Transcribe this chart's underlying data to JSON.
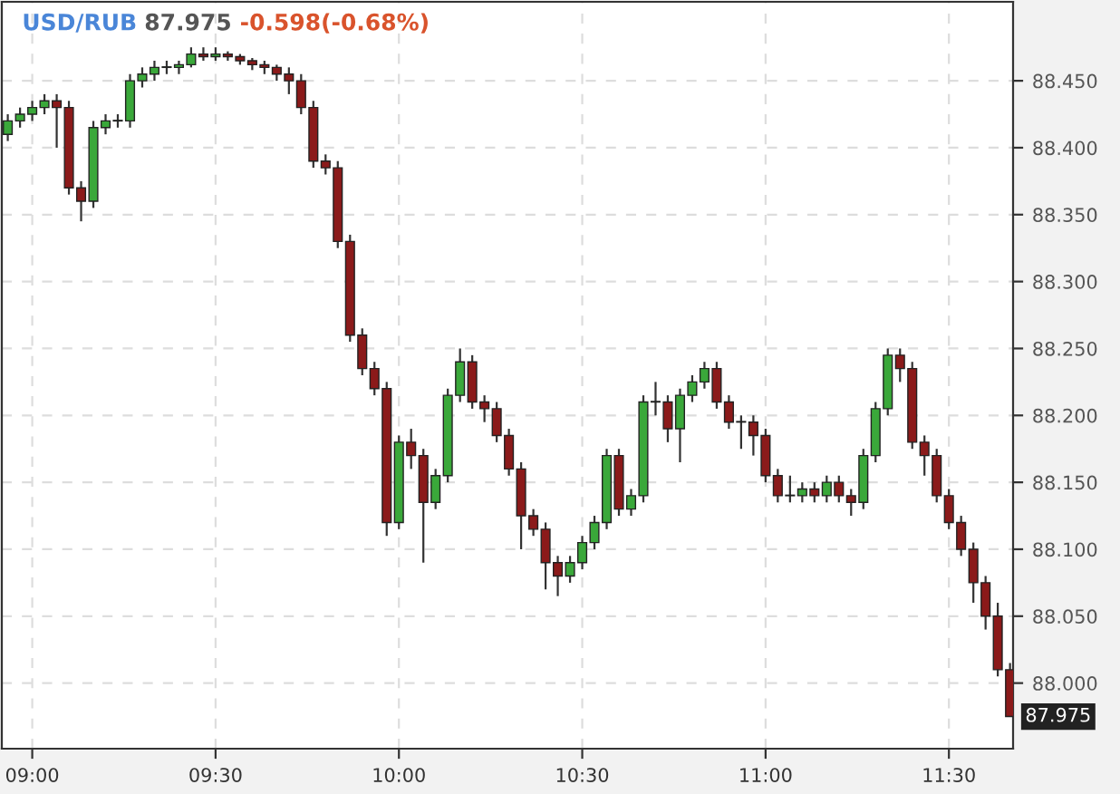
{
  "chart_data": {
    "type": "candlestick",
    "title": "USD/RUB",
    "annotations": [
      "87.975",
      "-0.598(-0.68%)",
      "87.975"
    ],
    "x": [
      8.9333,
      8.9667,
      9.0,
      9.0333,
      9.0667,
      9.1,
      9.1333,
      9.1667,
      9.2,
      9.2333,
      9.2667,
      9.3,
      9.3333,
      9.3667,
      9.4,
      9.4333,
      9.4667,
      9.5,
      9.5333,
      9.5667,
      9.6,
      9.6333,
      9.6667,
      9.7,
      9.7333,
      9.7667,
      9.8,
      9.8333,
      9.8667,
      9.9,
      9.9333,
      9.9667,
      10.0,
      10.0333,
      10.0667,
      10.1,
      10.1333,
      10.1667,
      10.2,
      10.2333,
      10.2667,
      10.3,
      10.3333,
      10.3667,
      10.4,
      10.4333,
      10.4667,
      10.5,
      10.5333,
      10.5667,
      10.6,
      10.6333,
      10.6667,
      10.7,
      10.7333,
      10.7667,
      10.8,
      10.8333,
      10.8667,
      10.9,
      10.9333,
      10.9667,
      11.0,
      11.0333,
      11.0667,
      11.1,
      11.1333,
      11.1667,
      11.2,
      11.2333,
      11.2667,
      11.3,
      11.3333,
      11.3667,
      11.4,
      11.4333,
      11.4667,
      11.5,
      11.5333,
      11.5667,
      11.6,
      11.6333,
      11.6667
    ],
    "ohlc": [
      [
        88.41,
        88.425,
        88.405,
        88.42
      ],
      [
        88.42,
        88.43,
        88.415,
        88.425
      ],
      [
        88.425,
        88.435,
        88.42,
        88.43
      ],
      [
        88.43,
        88.44,
        88.425,
        88.435
      ],
      [
        88.435,
        88.44,
        88.4,
        88.43
      ],
      [
        88.43,
        88.435,
        88.365,
        88.37
      ],
      [
        88.37,
        88.375,
        88.345,
        88.36
      ],
      [
        88.36,
        88.42,
        88.355,
        88.415
      ],
      [
        88.415,
        88.425,
        88.41,
        88.42
      ],
      [
        88.42,
        88.425,
        88.415,
        88.42
      ],
      [
        88.42,
        88.455,
        88.415,
        88.45
      ],
      [
        88.45,
        88.46,
        88.445,
        88.455
      ],
      [
        88.455,
        88.465,
        88.45,
        88.46
      ],
      [
        88.46,
        88.465,
        88.455,
        88.46
      ],
      [
        88.46,
        88.465,
        88.455,
        88.462
      ],
      [
        88.462,
        88.475,
        88.46,
        88.47
      ],
      [
        88.47,
        88.475,
        88.465,
        88.468
      ],
      [
        88.468,
        88.475,
        88.465,
        88.47
      ],
      [
        88.47,
        88.472,
        88.465,
        88.468
      ],
      [
        88.468,
        88.47,
        88.462,
        88.465
      ],
      [
        88.465,
        88.467,
        88.458,
        88.462
      ],
      [
        88.462,
        88.465,
        88.455,
        88.46
      ],
      [
        88.46,
        88.462,
        88.45,
        88.455
      ],
      [
        88.455,
        88.46,
        88.44,
        88.45
      ],
      [
        88.45,
        88.455,
        88.425,
        88.43
      ],
      [
        88.43,
        88.435,
        88.385,
        88.39
      ],
      [
        88.39,
        88.395,
        88.38,
        88.385
      ],
      [
        88.385,
        88.39,
        88.325,
        88.33
      ],
      [
        88.33,
        88.335,
        88.255,
        88.26
      ],
      [
        88.26,
        88.265,
        88.23,
        88.235
      ],
      [
        88.235,
        88.24,
        88.215,
        88.22
      ],
      [
        88.22,
        88.225,
        88.11,
        88.12
      ],
      [
        88.12,
        88.185,
        88.115,
        88.18
      ],
      [
        88.18,
        88.19,
        88.16,
        88.17
      ],
      [
        88.17,
        88.175,
        88.09,
        88.135
      ],
      [
        88.135,
        88.16,
        88.13,
        88.155
      ],
      [
        88.155,
        88.22,
        88.15,
        88.215
      ],
      [
        88.215,
        88.25,
        88.21,
        88.24
      ],
      [
        88.24,
        88.245,
        88.205,
        88.21
      ],
      [
        88.21,
        88.215,
        88.195,
        88.205
      ],
      [
        88.205,
        88.21,
        88.18,
        88.185
      ],
      [
        88.185,
        88.19,
        88.155,
        88.16
      ],
      [
        88.16,
        88.165,
        88.1,
        88.125
      ],
      [
        88.125,
        88.13,
        88.11,
        88.115
      ],
      [
        88.115,
        88.12,
        88.07,
        88.09
      ],
      [
        88.09,
        88.095,
        88.065,
        88.08
      ],
      [
        88.08,
        88.095,
        88.075,
        88.09
      ],
      [
        88.09,
        88.11,
        88.085,
        88.105
      ],
      [
        88.105,
        88.125,
        88.1,
        88.12
      ],
      [
        88.12,
        88.175,
        88.115,
        88.17
      ],
      [
        88.17,
        88.175,
        88.125,
        88.13
      ],
      [
        88.13,
        88.145,
        88.125,
        88.14
      ],
      [
        88.14,
        88.215,
        88.135,
        88.21
      ],
      [
        88.21,
        88.225,
        88.2,
        88.21
      ],
      [
        88.21,
        88.215,
        88.18,
        88.19
      ],
      [
        88.19,
        88.22,
        88.165,
        88.215
      ],
      [
        88.215,
        88.23,
        88.21,
        88.225
      ],
      [
        88.225,
        88.24,
        88.22,
        88.235
      ],
      [
        88.235,
        88.24,
        88.205,
        88.21
      ],
      [
        88.21,
        88.215,
        88.19,
        88.195
      ],
      [
        88.195,
        88.2,
        88.175,
        88.195
      ],
      [
        88.195,
        88.2,
        88.17,
        88.185
      ],
      [
        88.185,
        88.19,
        88.15,
        88.155
      ],
      [
        88.155,
        88.16,
        88.135,
        88.14
      ],
      [
        88.14,
        88.155,
        88.135,
        88.14
      ],
      [
        88.14,
        88.15,
        88.135,
        88.145
      ],
      [
        88.145,
        88.15,
        88.135,
        88.14
      ],
      [
        88.14,
        88.155,
        88.135,
        88.15
      ],
      [
        88.15,
        88.155,
        88.135,
        88.14
      ],
      [
        88.14,
        88.145,
        88.125,
        88.135
      ],
      [
        88.135,
        88.175,
        88.13,
        88.17
      ],
      [
        88.17,
        88.21,
        88.165,
        88.205
      ],
      [
        88.205,
        88.25,
        88.2,
        88.245
      ],
      [
        88.245,
        88.25,
        88.225,
        88.235
      ],
      [
        88.235,
        88.24,
        88.175,
        88.18
      ],
      [
        88.18,
        88.185,
        88.155,
        88.17
      ],
      [
        88.17,
        88.175,
        88.135,
        88.14
      ],
      [
        88.14,
        88.145,
        88.115,
        88.12
      ],
      [
        88.12,
        88.125,
        88.095,
        88.1
      ],
      [
        88.1,
        88.105,
        88.06,
        88.075
      ],
      [
        88.075,
        88.08,
        88.04,
        88.05
      ],
      [
        88.05,
        88.06,
        88.005,
        88.01
      ],
      [
        88.01,
        88.015,
        87.975,
        87.975
      ]
    ],
    "colors": [
      "#3aa83a",
      "#3aa83a",
      "#3aa83a",
      "#3aa83a",
      "#8b1a1a",
      "#8b1a1a",
      "#8b1a1a",
      "#3aa83a",
      "#3aa83a",
      "#3aa83a",
      "#3aa83a",
      "#3aa83a",
      "#3aa83a",
      "#3aa83a",
      "#3aa83a",
      "#3aa83a",
      "#8b1a1a",
      "#3aa83a",
      "#8b1a1a",
      "#8b1a1a",
      "#8b1a1a",
      "#8b1a1a",
      "#8b1a1a",
      "#8b1a1a",
      "#8b1a1a",
      "#8b1a1a",
      "#8b1a1a",
      "#8b1a1a",
      "#8b1a1a",
      "#8b1a1a",
      "#8b1a1a",
      "#8b1a1a",
      "#3aa83a",
      "#8b1a1a",
      "#8b1a1a",
      "#3aa83a",
      "#3aa83a",
      "#3aa83a",
      "#8b1a1a",
      "#8b1a1a",
      "#8b1a1a",
      "#8b1a1a",
      "#8b1a1a",
      "#8b1a1a",
      "#8b1a1a",
      "#8b1a1a",
      "#3aa83a",
      "#3aa83a",
      "#3aa83a",
      "#3aa83a",
      "#8b1a1a",
      "#3aa83a",
      "#3aa83a",
      "#3aa83a",
      "#8b1a1a",
      "#3aa83a",
      "#3aa83a",
      "#3aa83a",
      "#8b1a1a",
      "#8b1a1a",
      "#3aa83a",
      "#8b1a1a",
      "#8b1a1a",
      "#8b1a1a",
      "#3aa83a",
      "#3aa83a",
      "#8b1a1a",
      "#3aa83a",
      "#8b1a1a",
      "#8b1a1a",
      "#3aa83a",
      "#3aa83a",
      "#3aa83a",
      "#8b1a1a",
      "#8b1a1a",
      "#8b1a1a",
      "#8b1a1a",
      "#8b1a1a",
      "#8b1a1a",
      "#8b1a1a",
      "#8b1a1a",
      "#8b1a1a",
      "#8b1a1a"
    ],
    "xlim": [
      8.917,
      11.675
    ],
    "xticks": [
      {
        "value": 9.0,
        "label": "09:00"
      },
      {
        "value": 9.5,
        "label": "09:30"
      },
      {
        "value": 10.0,
        "label": "10:00"
      },
      {
        "value": 10.5,
        "label": "10:30"
      },
      {
        "value": 11.0,
        "label": "11:00"
      },
      {
        "value": 11.5,
        "label": "11:30"
      }
    ],
    "ylim": [
      87.951,
      88.509
    ],
    "yticks": [
      {
        "value": 88.0,
        "label": "88.000"
      },
      {
        "value": 88.05,
        "label": "88.050"
      },
      {
        "value": 88.1,
        "label": "88.100"
      },
      {
        "value": 88.15,
        "label": "88.150"
      },
      {
        "value": 88.2,
        "label": "88.200"
      },
      {
        "value": 88.25,
        "label": "88.250"
      },
      {
        "value": 88.3,
        "label": "88.300"
      },
      {
        "value": 88.35,
        "label": "88.350"
      },
      {
        "value": 88.4,
        "label": "88.400"
      },
      {
        "value": 88.45,
        "label": "88.450"
      }
    ],
    "grid": true
  }
}
